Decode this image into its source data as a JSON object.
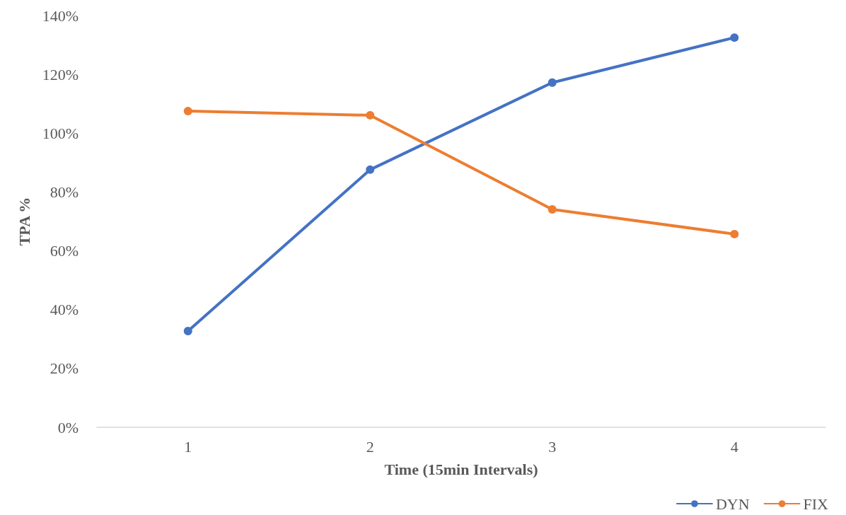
{
  "chart_data": {
    "type": "line",
    "xlabel": "Time (15min Intervals)",
    "ylabel": "TPA %",
    "categories": [
      "1",
      "2",
      "3",
      "4"
    ],
    "series": [
      {
        "name": "DYN",
        "color": "#4472c4",
        "values": [
          32.7,
          87.6,
          117.2,
          132.5
        ]
      },
      {
        "name": "FIX",
        "color": "#ed7d31",
        "values": [
          107.5,
          106.1,
          74.1,
          65.7
        ]
      }
    ],
    "ylim": [
      0,
      140
    ],
    "yticks": [
      {
        "value": 0,
        "label": "0%"
      },
      {
        "value": 20,
        "label": "20%"
      },
      {
        "value": 40,
        "label": "40%"
      },
      {
        "value": 60,
        "label": "60%"
      },
      {
        "value": 80,
        "label": "80%"
      },
      {
        "value": 100,
        "label": "100%"
      },
      {
        "value": 120,
        "label": "120%"
      },
      {
        "value": 140,
        "label": "140%"
      }
    ],
    "grid": false,
    "legend": "bottom right",
    "marker": "circle",
    "line_style": "solid"
  }
}
